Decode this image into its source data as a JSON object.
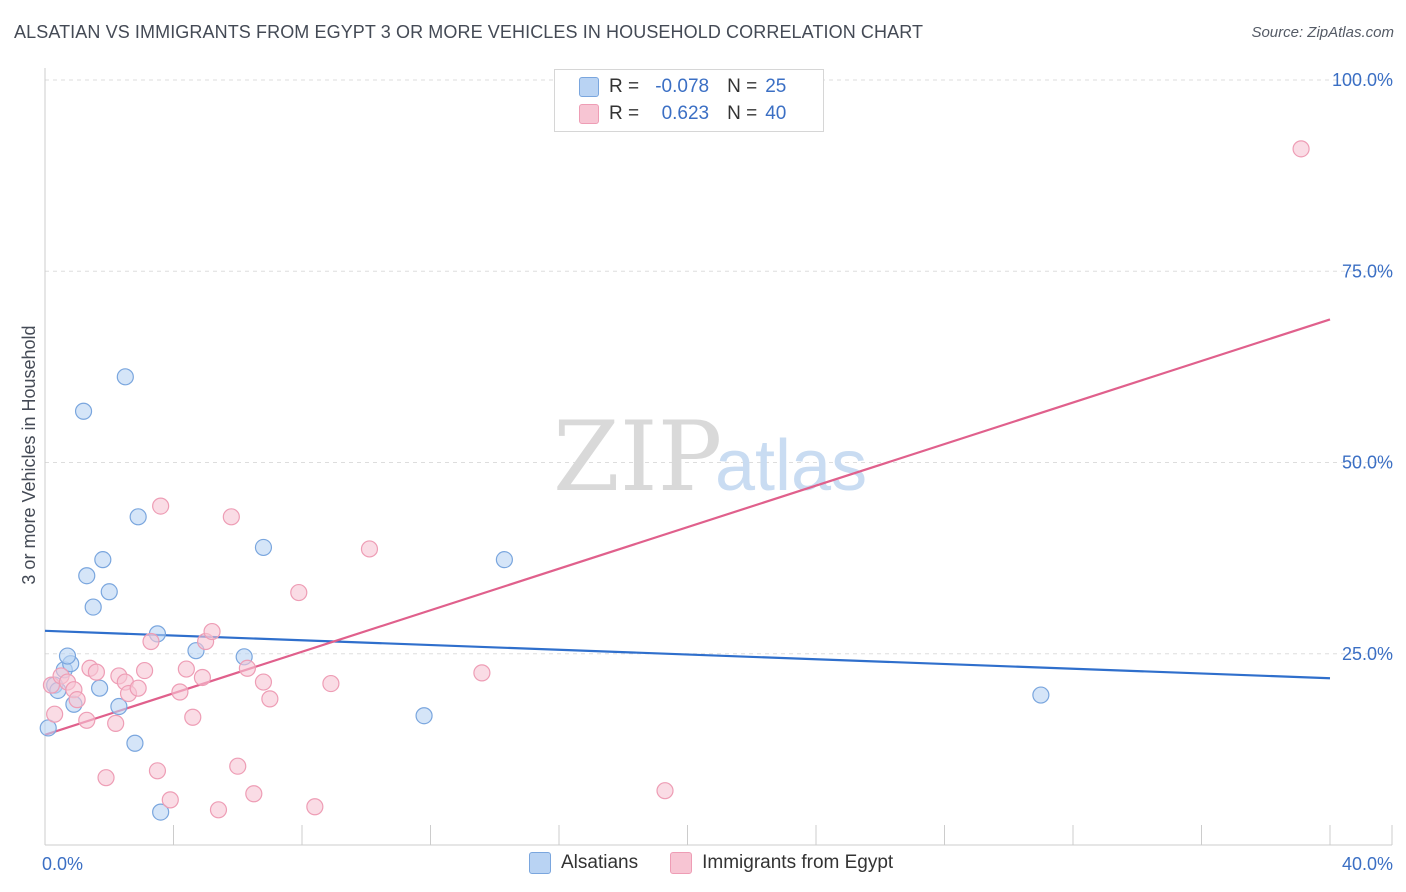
{
  "title": "ALSATIAN VS IMMIGRANTS FROM EGYPT 3 OR MORE VEHICLES IN HOUSEHOLD CORRELATION CHART",
  "source": "Source: ZipAtlas.com",
  "watermark": {
    "zip": "ZIP",
    "atlas": "atlas"
  },
  "legend": {
    "rows": [
      {
        "r_label": "R =",
        "r_value": "-0.078",
        "n_label": "N =",
        "n_value": "25"
      },
      {
        "r_label": "R =",
        "r_value": "0.623",
        "n_label": "N =",
        "n_value": "40"
      }
    ]
  },
  "bottom_legend": [
    "Alsatians",
    "Immigrants from Egypt"
  ],
  "colors": {
    "series1_fill": "#b9d3f3",
    "series1_stroke": "#7aa6de",
    "series1_line": "#2f6fcc",
    "series2_fill": "#f7c5d3",
    "series2_stroke": "#ee9db5",
    "series2_line": "#e0608c",
    "tick_label": "#3b6fc4",
    "grid": "#dddddd"
  },
  "chart_data": {
    "type": "scatter",
    "title": "ALSATIAN VS IMMIGRANTS FROM EGYPT 3 OR MORE VEHICLES IN HOUSEHOLD CORRELATION CHART",
    "xlabel": "",
    "ylabel": "3 or more Vehicles in Household",
    "xlim": [
      0,
      40
    ],
    "ylim": [
      0,
      100
    ],
    "x_tick_labels": [
      "0.0%",
      "40.0%"
    ],
    "y_ticks": [
      25,
      50,
      75,
      100
    ],
    "y_tick_labels": [
      "25.0%",
      "50.0%",
      "75.0%",
      "100.0%"
    ],
    "series": [
      {
        "name": "Alsatians",
        "r": -0.078,
        "n": 25,
        "trend": {
          "x": [
            0,
            40
          ],
          "y": [
            28.0,
            21.8
          ]
        },
        "points": [
          {
            "x": 0.1,
            "y": 15.3
          },
          {
            "x": 0.3,
            "y": 20.9
          },
          {
            "x": 0.4,
            "y": 20.2
          },
          {
            "x": 0.6,
            "y": 22.9
          },
          {
            "x": 0.8,
            "y": 23.7
          },
          {
            "x": 0.7,
            "y": 24.7
          },
          {
            "x": 0.9,
            "y": 18.4
          },
          {
            "x": 1.3,
            "y": 35.2
          },
          {
            "x": 1.5,
            "y": 31.1
          },
          {
            "x": 1.8,
            "y": 37.3
          },
          {
            "x": 2.0,
            "y": 33.1
          },
          {
            "x": 1.7,
            "y": 20.5
          },
          {
            "x": 1.2,
            "y": 56.7
          },
          {
            "x": 2.5,
            "y": 61.2
          },
          {
            "x": 2.9,
            "y": 42.9
          },
          {
            "x": 2.3,
            "y": 18.1
          },
          {
            "x": 2.8,
            "y": 13.3
          },
          {
            "x": 3.5,
            "y": 27.6
          },
          {
            "x": 3.6,
            "y": 4.3
          },
          {
            "x": 4.7,
            "y": 25.4
          },
          {
            "x": 6.2,
            "y": 24.6
          },
          {
            "x": 6.8,
            "y": 38.9
          },
          {
            "x": 11.8,
            "y": 16.9
          },
          {
            "x": 14.3,
            "y": 37.3
          },
          {
            "x": 31.0,
            "y": 19.6
          }
        ]
      },
      {
        "name": "Immigrants from Egypt",
        "r": 0.623,
        "n": 40,
        "trend": {
          "x": [
            0,
            40
          ],
          "y": [
            14.4,
            68.7
          ]
        },
        "points": [
          {
            "x": 0.2,
            "y": 20.9
          },
          {
            "x": 0.3,
            "y": 17.1
          },
          {
            "x": 0.5,
            "y": 22.1
          },
          {
            "x": 0.7,
            "y": 21.3
          },
          {
            "x": 0.9,
            "y": 20.3
          },
          {
            "x": 1.0,
            "y": 19.0
          },
          {
            "x": 1.3,
            "y": 16.3
          },
          {
            "x": 1.4,
            "y": 23.1
          },
          {
            "x": 1.6,
            "y": 22.6
          },
          {
            "x": 1.9,
            "y": 8.8
          },
          {
            "x": 2.2,
            "y": 15.9
          },
          {
            "x": 2.3,
            "y": 22.1
          },
          {
            "x": 2.5,
            "y": 21.3
          },
          {
            "x": 2.6,
            "y": 19.8
          },
          {
            "x": 2.9,
            "y": 20.5
          },
          {
            "x": 3.1,
            "y": 22.8
          },
          {
            "x": 3.3,
            "y": 26.6
          },
          {
            "x": 3.5,
            "y": 9.7
          },
          {
            "x": 3.6,
            "y": 44.3
          },
          {
            "x": 3.9,
            "y": 5.9
          },
          {
            "x": 4.2,
            "y": 20.0
          },
          {
            "x": 4.4,
            "y": 23.0
          },
          {
            "x": 4.6,
            "y": 16.7
          },
          {
            "x": 4.9,
            "y": 21.9
          },
          {
            "x": 5.0,
            "y": 26.6
          },
          {
            "x": 5.2,
            "y": 27.9
          },
          {
            "x": 5.4,
            "y": 4.6
          },
          {
            "x": 5.8,
            "y": 42.9
          },
          {
            "x": 6.0,
            "y": 10.3
          },
          {
            "x": 6.3,
            "y": 23.1
          },
          {
            "x": 6.5,
            "y": 6.7
          },
          {
            "x": 6.8,
            "y": 21.3
          },
          {
            "x": 7.0,
            "y": 19.1
          },
          {
            "x": 7.9,
            "y": 33.0
          },
          {
            "x": 8.4,
            "y": 5.0
          },
          {
            "x": 8.9,
            "y": 21.1
          },
          {
            "x": 10.1,
            "y": 38.7
          },
          {
            "x": 13.6,
            "y": 22.5
          },
          {
            "x": 19.3,
            "y": 7.1
          },
          {
            "x": 39.1,
            "y": 91.0
          }
        ]
      }
    ]
  }
}
